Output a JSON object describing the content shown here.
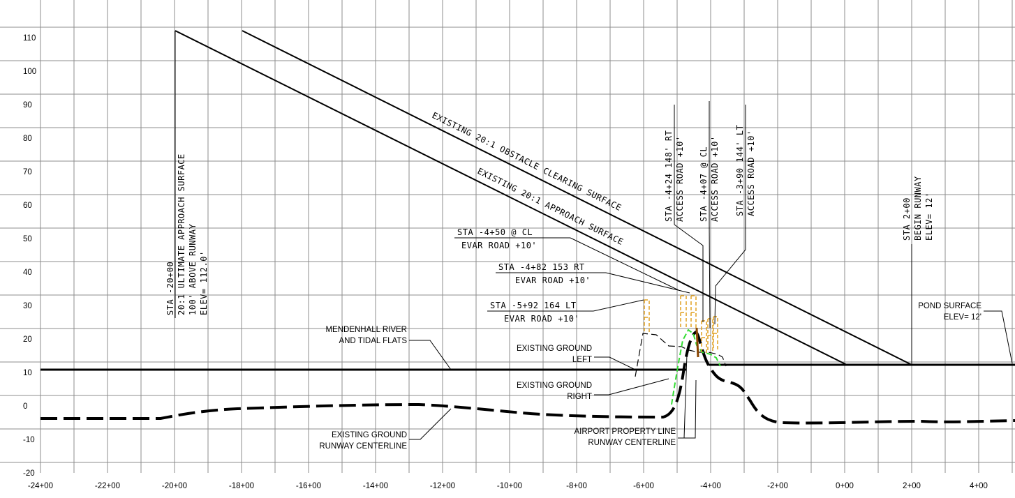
{
  "elev_labels": [
    "110",
    "100",
    "90",
    "80",
    "70",
    "60",
    "50",
    "40",
    "30",
    "20",
    "10",
    "0",
    "-10",
    "-20"
  ],
  "station_labels": [
    "-24+00",
    "-22+00",
    "-20+00",
    "-18+00",
    "-16+00",
    "-14+00",
    "-12+00",
    "-10+00",
    "-8+00",
    "-6+00",
    "-4+00",
    "-2+00",
    "0+00",
    "2+00",
    "4+00"
  ],
  "surfaces": {
    "ocs": "EXISTING 20:1 OBSTACLE CLEARING SURFACE",
    "approach": "EXISTING 20:1 APPROACH SURFACE"
  },
  "ultimate": [
    "STA  -20+00",
    "20:1 ULTIMATE APPROACH SURFACE",
    "100' ABOVE RUNWAY",
    "ELEV= 112.0'"
  ],
  "begin_runway": [
    "STA 2+00",
    "BEGIN RUNWAY",
    "ELEV= 12'"
  ],
  "access_roads": [
    {
      "sta": "STA  -4+24  148' RT",
      "road": "ACCESS  ROAD  +10'"
    },
    {
      "sta": "STA  -4+07  @  CL",
      "road": "ACCESS  ROAD  +10'"
    },
    {
      "sta": "STA  -3+90  144'  LT",
      "road": "ACCESS  ROAD  +10'"
    }
  ],
  "evar_roads": [
    {
      "sta": "STA  -4+50  @  CL",
      "road": "EVAR  ROAD  +10'"
    },
    {
      "sta": "STA  -4+82  153  RT",
      "road": "EVAR  ROAD  +10'"
    },
    {
      "sta": "STA  -5+92  164  LT",
      "road": "EVAR  ROAD  +10'"
    }
  ],
  "callouts": {
    "river": [
      "MENDENHALL RIVER",
      "AND TIDAL FLATS"
    ],
    "ground_left": [
      "EXISTING GROUND",
      "LEFT"
    ],
    "ground_right": [
      "EXISTING GROUND",
      "RIGHT"
    ],
    "ground_centerline": [
      "EXISTING GROUND",
      "RUNWAY CENTERLINE"
    ],
    "property_line": [
      "AIRPORT PROPERTY LINE",
      "RUNWAY CENTERLINE"
    ],
    "pond": [
      "POND SURFACE",
      "ELEV= 12'"
    ]
  },
  "colors": {
    "grid": "#8c8c8c",
    "line": "#000000",
    "green": "#33dd33",
    "orange": "#e0a020"
  }
}
